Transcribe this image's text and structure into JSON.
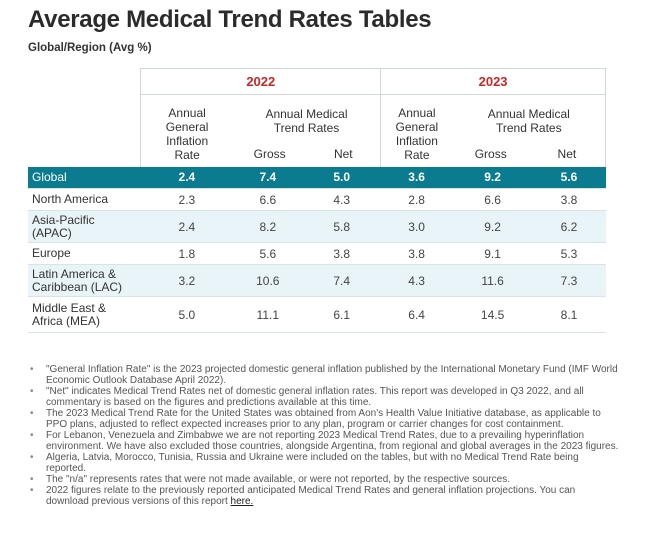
{
  "title": "Average Medical Trend Rates Tables",
  "subtitle": "Global/Region (Avg %)",
  "years": [
    "2022",
    "2023"
  ],
  "headers": {
    "inflation": [
      "Annual",
      "General",
      "Inflation",
      "Rate"
    ],
    "trend": [
      "Annual Medical",
      "Trend Rates"
    ],
    "gross": "Gross",
    "net": "Net"
  },
  "rows": [
    {
      "label": [
        "Global"
      ],
      "values": [
        "2.4",
        "7.4",
        "5.0",
        "3.6",
        "9.2",
        "5.6"
      ]
    },
    {
      "label": [
        "North America"
      ],
      "values": [
        "2.3",
        "6.6",
        "4.3",
        "2.8",
        "6.6",
        "3.8"
      ]
    },
    {
      "label": [
        "Asia-Pacific",
        "(APAC)"
      ],
      "values": [
        "2.4",
        "8.2",
        "5.8",
        "3.0",
        "9.2",
        "6.2"
      ]
    },
    {
      "label": [
        "Europe"
      ],
      "values": [
        "1.8",
        "5.6",
        "3.8",
        "3.8",
        "9.1",
        "5.3"
      ]
    },
    {
      "label": [
        "Latin America &",
        "Caribbean (LAC)"
      ],
      "values": [
        "3.2",
        "10.6",
        "7.4",
        "4.3",
        "11.6",
        "7.3"
      ]
    },
    {
      "label": [
        "Middle East &",
        "Africa (MEA)"
      ],
      "values": [
        "5.0",
        "11.1",
        "6.1",
        "6.4",
        "14.5",
        "8.1"
      ]
    }
  ],
  "notes": [
    "\"General Inflation Rate\" is the 2023 projected domestic general inflation published by the International Monetary Fund (IMF World Economic Outlook Database April 2022).",
    "\"Net\" indicates Medical Trend Rates net of domestic general inflation rates. This report was developed in Q3 2022, and all commentary is based on the figures and predictions available at this time.",
    "The 2023 Medical Trend Rate for the United States was obtained from Aon's Health Value Initiative database, as applicable to PPO plans, adjusted to reflect expected increases prior to any plan, program or carrier changes for cost containment.",
    "For Lebanon, Venezuela and Zimbabwe we are not reporting 2023 Medical Trend Rates, due to a prevailing hyperinflation environment. We have also excluded those countries, alongside Argentina, from regional and global averages in the 2023 figures.",
    "Algeria, Latvia, Morocco, Tunisia, Russia and Ukraine were included on the tables, but with no Medical Trend Rate being reported.",
    "The \"n/a\" represents rates that were not made available, or were not reported, by the respective sources.",
    "2022 figures relate to the previously reported anticipated Medical Trend Rates and general inflation projections. You can download previous versions of this report"
  ],
  "last_note_link": "here."
}
